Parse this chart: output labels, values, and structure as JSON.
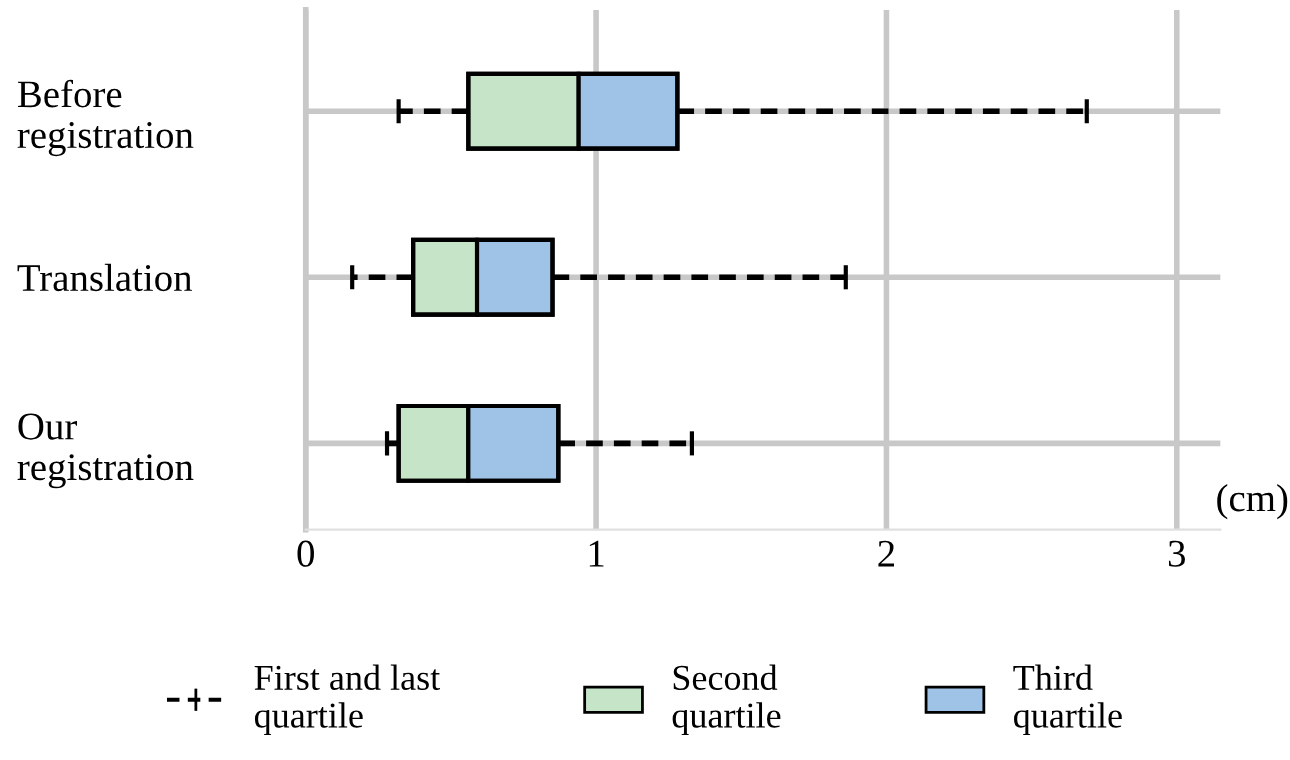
{
  "chart_data": {
    "type": "box",
    "orientation": "horizontal",
    "categories": [
      "Before\nregistration",
      "Translation",
      "Our\nregistration"
    ],
    "series": [
      {
        "name": "First and last\nquartile",
        "color": "#000000",
        "boxes": [
          {
            "low": 0.32,
            "q1": 0.56,
            "median": 0.94,
            "q3": 1.28,
            "high": 2.69
          },
          {
            "low": 0.16,
            "q1": 0.37,
            "median": 0.59,
            "q3": 0.85,
            "high": 1.86
          },
          {
            "low": 0.28,
            "q1": 0.32,
            "median": 0.56,
            "q3": 0.87,
            "high": 1.33
          }
        ]
      },
      {
        "name": "Second\nquartile",
        "color": "#c5e4c8",
        "type": "bar",
        "base": [
          0.56,
          0.37,
          0.32
        ],
        "values": [
          0.38,
          0.22,
          0.24
        ]
      },
      {
        "name": "Third\nquartile",
        "color": "#9fc3e6",
        "type": "bar",
        "base": [
          0.94,
          0.59,
          0.56
        ],
        "values": [
          0.34,
          0.26,
          0.31
        ]
      }
    ],
    "xlabel": "(cm)",
    "xlim": [
      0,
      3.15
    ],
    "xticks": [
      0,
      1,
      2,
      3
    ],
    "grid": true,
    "legend": "bottom",
    "line_style": "dashed"
  }
}
